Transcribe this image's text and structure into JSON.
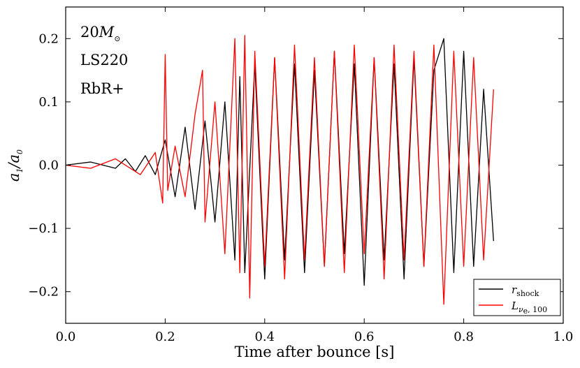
{
  "chart_data": {
    "type": "line",
    "title": "",
    "xlabel": "Time after bounce [s]",
    "ylabel": "a1/a0",
    "xlim": [
      0.0,
      1.0
    ],
    "ylim": [
      -0.25,
      0.25
    ],
    "x_ticks": [
      0.0,
      0.2,
      0.4,
      0.6,
      0.8,
      1.0
    ],
    "x_tick_labels": [
      "0.0",
      "0.2",
      "0.4",
      "0.6",
      "0.8",
      "1.0"
    ],
    "y_ticks": [
      -0.2,
      -0.1,
      0.0,
      0.1,
      0.2
    ],
    "y_tick_labels": [
      "−0.2",
      "−0.1",
      "0.0",
      "0.1",
      "0.2"
    ],
    "grid": false,
    "annotations": [
      "20M⊙",
      "LS220",
      "RbR+"
    ],
    "legend": {
      "placement": "bottom-right",
      "entries": [
        {
          "label": "r_shock",
          "color": "#000000"
        },
        {
          "label": "L_νe,100",
          "color": "#ff0000"
        }
      ]
    },
    "series": [
      {
        "name": "r_shock",
        "color": "#000000",
        "x": [
          0.0,
          0.05,
          0.1,
          0.12,
          0.14,
          0.16,
          0.18,
          0.2,
          0.22,
          0.24,
          0.26,
          0.28,
          0.3,
          0.32,
          0.34,
          0.35,
          0.36,
          0.38,
          0.4,
          0.42,
          0.44,
          0.46,
          0.48,
          0.5,
          0.52,
          0.54,
          0.56,
          0.58,
          0.6,
          0.62,
          0.64,
          0.66,
          0.68,
          0.7,
          0.72,
          0.74,
          0.76,
          0.78,
          0.8,
          0.82,
          0.84,
          0.86
        ],
        "y": [
          0.0,
          0.005,
          -0.005,
          0.01,
          -0.01,
          0.015,
          -0.015,
          0.04,
          -0.05,
          0.06,
          -0.07,
          0.07,
          -0.09,
          0.1,
          -0.15,
          0.14,
          -0.17,
          0.16,
          -0.18,
          0.17,
          -0.15,
          0.16,
          -0.17,
          0.15,
          -0.16,
          0.18,
          -0.14,
          0.16,
          -0.19,
          0.17,
          -0.15,
          0.16,
          -0.18,
          0.17,
          -0.16,
          0.15,
          0.2,
          -0.17,
          0.18,
          -0.16,
          0.12,
          -0.12
        ]
      },
      {
        "name": "L_νe,100",
        "color": "#ff0000",
        "x": [
          0.0,
          0.05,
          0.1,
          0.15,
          0.18,
          0.195,
          0.2,
          0.205,
          0.22,
          0.24,
          0.26,
          0.275,
          0.28,
          0.3,
          0.32,
          0.34,
          0.35,
          0.36,
          0.37,
          0.38,
          0.4,
          0.42,
          0.44,
          0.46,
          0.48,
          0.5,
          0.52,
          0.54,
          0.56,
          0.58,
          0.6,
          0.62,
          0.64,
          0.66,
          0.68,
          0.7,
          0.72,
          0.74,
          0.76,
          0.78,
          0.8,
          0.82,
          0.84,
          0.86
        ],
        "y": [
          0.0,
          -0.005,
          0.01,
          -0.015,
          0.02,
          -0.06,
          0.175,
          -0.04,
          0.03,
          -0.05,
          0.08,
          0.15,
          -0.09,
          0.1,
          -0.14,
          0.2,
          -0.17,
          0.205,
          -0.21,
          0.18,
          -0.16,
          0.17,
          -0.18,
          0.19,
          -0.15,
          0.17,
          -0.16,
          0.18,
          -0.17,
          0.19,
          -0.14,
          0.17,
          -0.18,
          0.19,
          -0.15,
          0.18,
          -0.16,
          0.19,
          -0.22,
          0.18,
          -0.16,
          0.17,
          -0.15,
          0.12
        ]
      }
    ]
  }
}
